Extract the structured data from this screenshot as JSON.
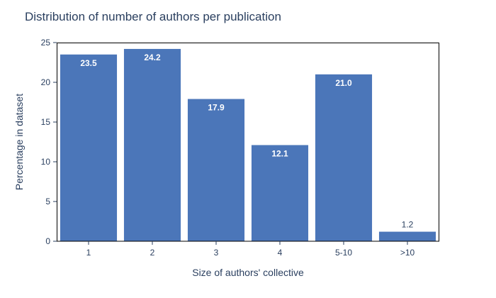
{
  "chart_data": {
    "type": "bar",
    "title": "Distribution of number of authors per publication",
    "xlabel": "Size of authors' collective",
    "ylabel": "Percentage in dataset",
    "categories": [
      "1",
      "2",
      "3",
      "4",
      "5-10",
      ">10"
    ],
    "values": [
      23.5,
      24.2,
      17.9,
      12.1,
      21.0,
      1.2
    ],
    "value_labels": [
      "23.5",
      "24.2",
      "17.9",
      "12.1",
      "21.0",
      "1.2"
    ],
    "ylim": [
      0,
      25
    ],
    "yticks": [
      0,
      5,
      10,
      15,
      20,
      25
    ],
    "ytick_labels": [
      "0",
      "5",
      "10",
      "15",
      "20",
      "25"
    ],
    "grid": false,
    "legend": "none",
    "colors": {
      "bar": "#4b76b9",
      "label_inside": "#ffffff",
      "label_outside": "#2a3f5f",
      "axis": "#2a3f5f",
      "frame": "#000000"
    }
  }
}
